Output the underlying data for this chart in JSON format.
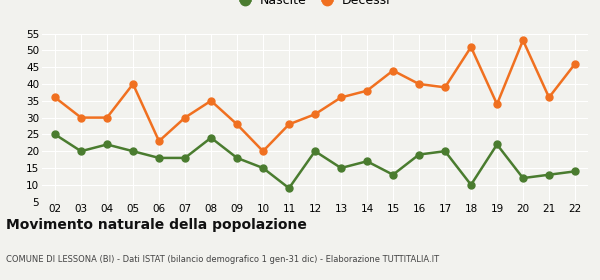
{
  "years": [
    "02",
    "03",
    "04",
    "05",
    "06",
    "07",
    "08",
    "09",
    "10",
    "11",
    "12",
    "13",
    "14",
    "15",
    "16",
    "17",
    "18",
    "19",
    "20",
    "21",
    "22"
  ],
  "nascite": [
    25,
    20,
    22,
    20,
    18,
    18,
    24,
    18,
    15,
    9,
    20,
    15,
    17,
    13,
    19,
    20,
    10,
    22,
    12,
    13,
    14
  ],
  "decessi": [
    36,
    30,
    30,
    40,
    23,
    30,
    35,
    28,
    20,
    28,
    31,
    36,
    38,
    44,
    40,
    39,
    51,
    34,
    53,
    36,
    46
  ],
  "nascite_color": "#4a7c2f",
  "decessi_color": "#f07020",
  "bg_color": "#f2f2ee",
  "grid_color": "#ffffff",
  "ylim": [
    5,
    55
  ],
  "yticks": [
    5,
    10,
    15,
    20,
    25,
    30,
    35,
    40,
    45,
    50,
    55
  ],
  "title": "Movimento naturale della popolazione",
  "subtitle": "COMUNE DI LESSONA (BI) - Dati ISTAT (bilancio demografico 1 gen-31 dic) - Elaborazione TUTTITALIA.IT",
  "legend_nascite": "Nascite",
  "legend_decessi": "Decessi",
  "marker_size": 5,
  "line_width": 1.8
}
